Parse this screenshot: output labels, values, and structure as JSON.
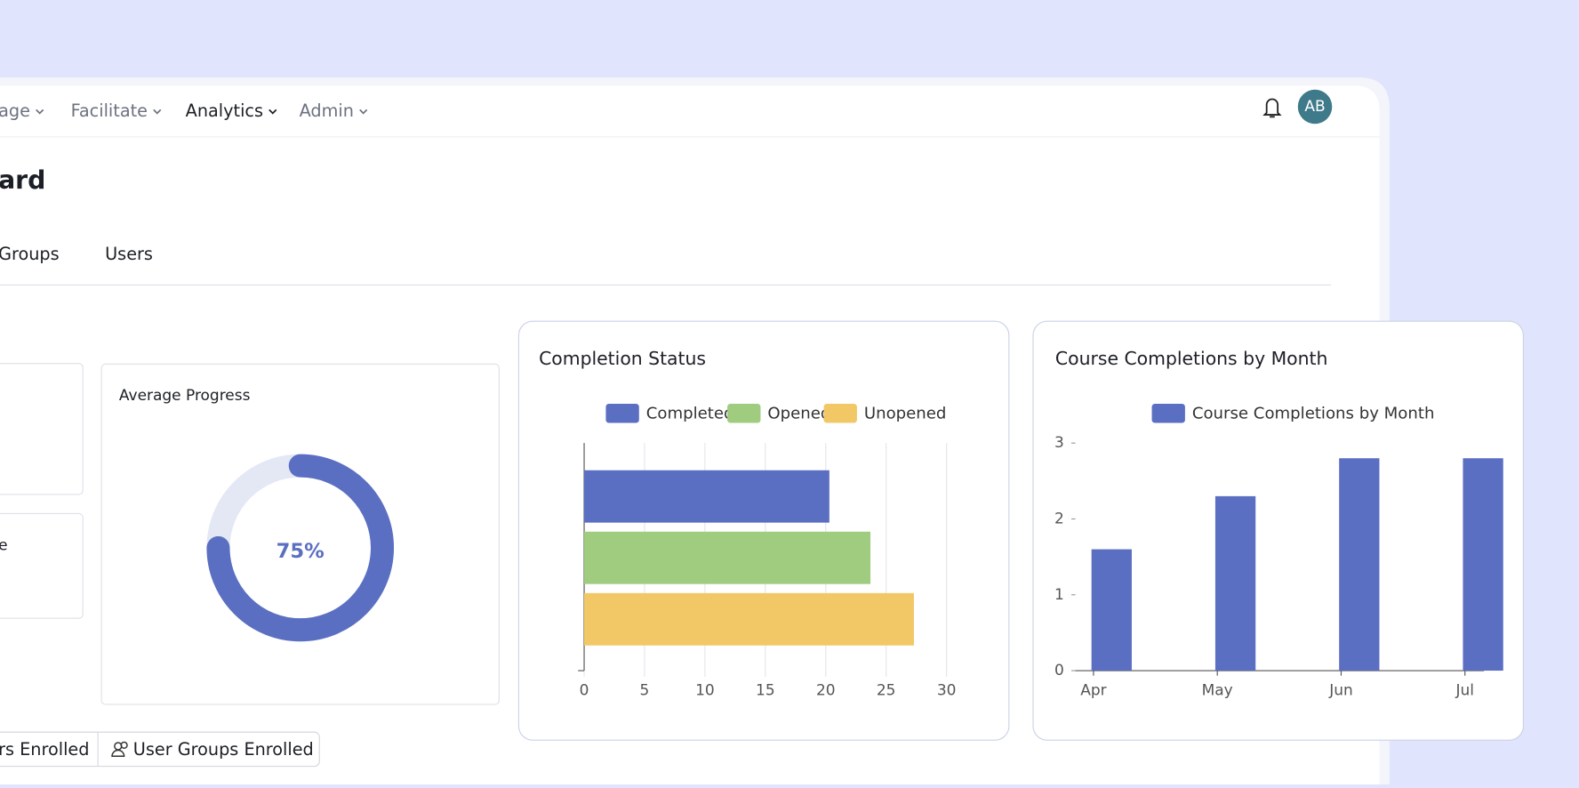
{
  "nav": [
    "age",
    "Facilitate",
    "Analytics",
    "Admin"
  ],
  "avatar": "AB",
  "heading": "ard",
  "tabs": [
    "Groups",
    "Users"
  ],
  "side_cards": [
    "e"
  ],
  "buttons": [
    "rs Enrolled",
    "User Groups Enrolled"
  ],
  "chart_data": [
    {
      "type": "donut",
      "title": "Average Progress",
      "values": [
        75
      ],
      "value_labels": [
        "75%"
      ],
      "color": "#5b6fc2",
      "track_color": "#e4e8f5"
    },
    {
      "type": "hbar",
      "title": "Completion Status",
      "series": [
        {
          "name": "Completed",
          "color": "#5b6fc2",
          "values": [
            20.3
          ]
        },
        {
          "name": "Opened",
          "color": "#9fcc7e",
          "values": [
            23.7
          ]
        },
        {
          "name": "Unopened",
          "color": "#f2c867",
          "values": [
            27.3
          ]
        }
      ],
      "xlim": [
        0,
        30
      ],
      "xticks": [
        0,
        5,
        10,
        15,
        20,
        25,
        30
      ],
      "grid": true
    },
    {
      "type": "bar",
      "title": "Course Completions by Month",
      "categories": [
        "Apr",
        "May",
        "Jun",
        "Jul"
      ],
      "series": [
        {
          "name": "Course Completions by Month",
          "color": "#5b6fc2",
          "values": [
            1.6,
            2.3,
            2.8,
            2.8
          ]
        }
      ],
      "ylim": [
        0,
        3
      ],
      "yticks": [
        0,
        1,
        2,
        3
      ],
      "grid": false
    }
  ]
}
